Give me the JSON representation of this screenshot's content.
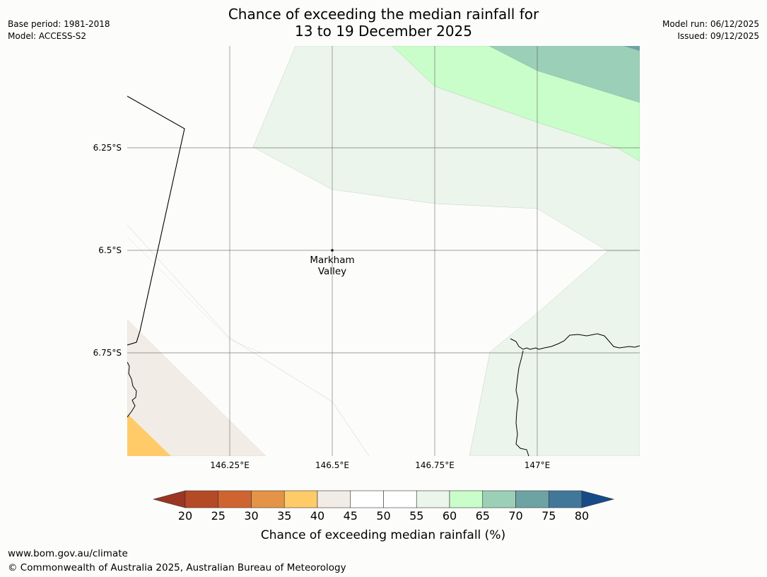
{
  "title": {
    "line1": "Chance of exceeding the median rainfall for",
    "line2": "13 to 19 December 2025"
  },
  "meta_left": {
    "base_period": "Base period: 1981-2018",
    "model": "Model: ACCESS-S2"
  },
  "meta_right": {
    "model_run": "Model run: 06/12/2025",
    "issued": "Issued: 09/12/2025"
  },
  "map": {
    "lat_labels": [
      "6.25°S",
      "6.5°S",
      "6.75°S"
    ],
    "lon_labels": [
      "146.25°E",
      "146.5°E",
      "146.75°E",
      "147°E"
    ],
    "place": {
      "name_line1": "Markham",
      "name_line2": "Valley"
    }
  },
  "colorbar": {
    "ticks": [
      "20",
      "25",
      "30",
      "35",
      "40",
      "45",
      "50",
      "55",
      "60",
      "65",
      "70",
      "75",
      "80"
    ],
    "colors": [
      "#9c3522",
      "#b54a26",
      "#d06430",
      "#e49347",
      "#ffcb69",
      "#f2ece6",
      "#ffffff",
      "#ffffff",
      "#ebf5eb",
      "#c9fdc9",
      "#9ccfb7",
      "#6ea3a4",
      "#41789a",
      "#174b87"
    ],
    "label": "Chance of exceeding median rainfall (%)"
  },
  "footer": {
    "url": "www.bom.gov.au/climate",
    "copyright": "© Commonwealth of Australia 2025, Australian Bureau of Meteorology"
  }
}
